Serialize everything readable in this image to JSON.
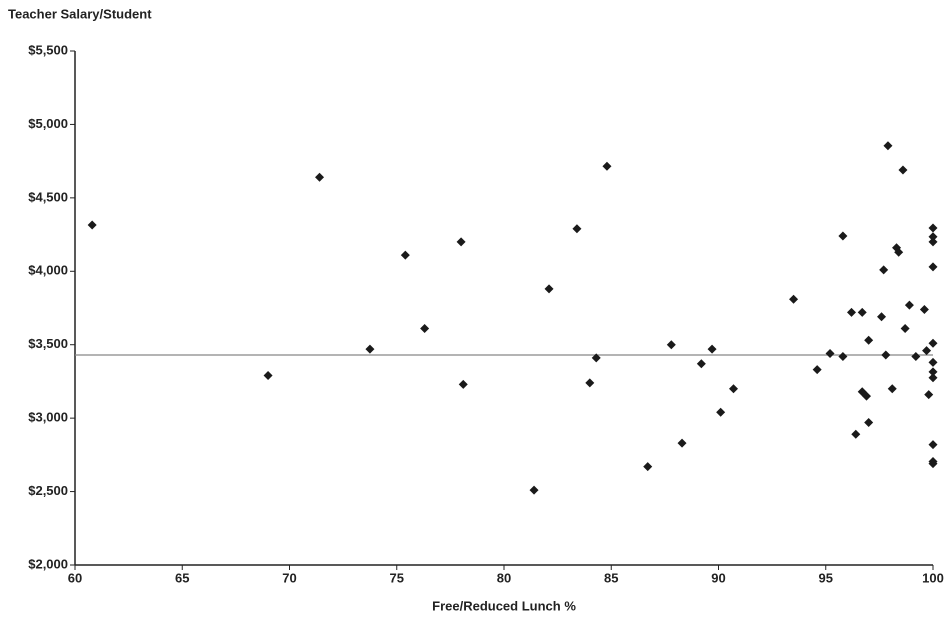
{
  "chart_data": {
    "type": "scatter",
    "y_axis_label": "Teacher Salary/Student",
    "x_axis_label": "Free/Reduced Lunch %",
    "color": "#1a1a1a",
    "reference_line": 3430,
    "reference_color": "#888888",
    "xlim": [
      60,
      100
    ],
    "xticks": [
      60,
      65,
      70,
      75,
      80,
      85,
      90,
      95,
      100
    ],
    "ylim": [
      2000,
      5500
    ],
    "yticks": [
      {
        "value": 2000,
        "label": "$2,000"
      },
      {
        "value": 2500,
        "label": "$2,500"
      },
      {
        "value": 3000,
        "label": "$3,000"
      },
      {
        "value": 3500,
        "label": "$3,500"
      },
      {
        "value": 4000,
        "label": "$4,000"
      },
      {
        "value": 4500,
        "label": "$4,500"
      },
      {
        "value": 5000,
        "label": "$5,000"
      },
      {
        "value": 5500,
        "label": "$5,500"
      }
    ],
    "x": [
      60.8,
      69.0,
      71.4,
      73.75,
      75.4,
      76.3,
      78.0,
      78.1,
      81.4,
      82.1,
      83.4,
      84.0,
      84.3,
      84.8,
      86.7,
      87.8,
      88.3,
      89.2,
      89.7,
      90.1,
      90.7,
      93.5,
      94.6,
      95.2,
      95.8,
      95.8,
      96.2,
      96.4,
      96.7,
      96.7,
      96.9,
      97.0,
      97.0,
      97.6,
      97.7,
      97.8,
      97.9,
      98.1,
      98.3,
      98.4,
      98.6,
      98.7,
      98.9,
      99.2,
      99.6,
      99.7,
      99.8,
      100,
      100,
      100,
      100,
      100,
      100,
      100,
      100,
      100,
      100,
      100
    ],
    "values": [
      4315,
      3290,
      4640,
      3470,
      4110,
      3610,
      4200,
      3230,
      2510,
      3880,
      4290,
      3240,
      3410,
      4715,
      2670,
      3500,
      2830,
      3370,
      3470,
      3040,
      3200,
      3810,
      3330,
      3440,
      3420,
      4240,
      3720,
      2890,
      3720,
      3180,
      3150,
      3530,
      2970,
      3690,
      4010,
      3430,
      4855,
      3200,
      4160,
      4130,
      4690,
      3610,
      3770,
      3420,
      3740,
      3460,
      3160,
      4295,
      4235,
      4200,
      4030,
      3510,
      3380,
      3315,
      3275,
      2820,
      2705,
      2690
    ]
  }
}
